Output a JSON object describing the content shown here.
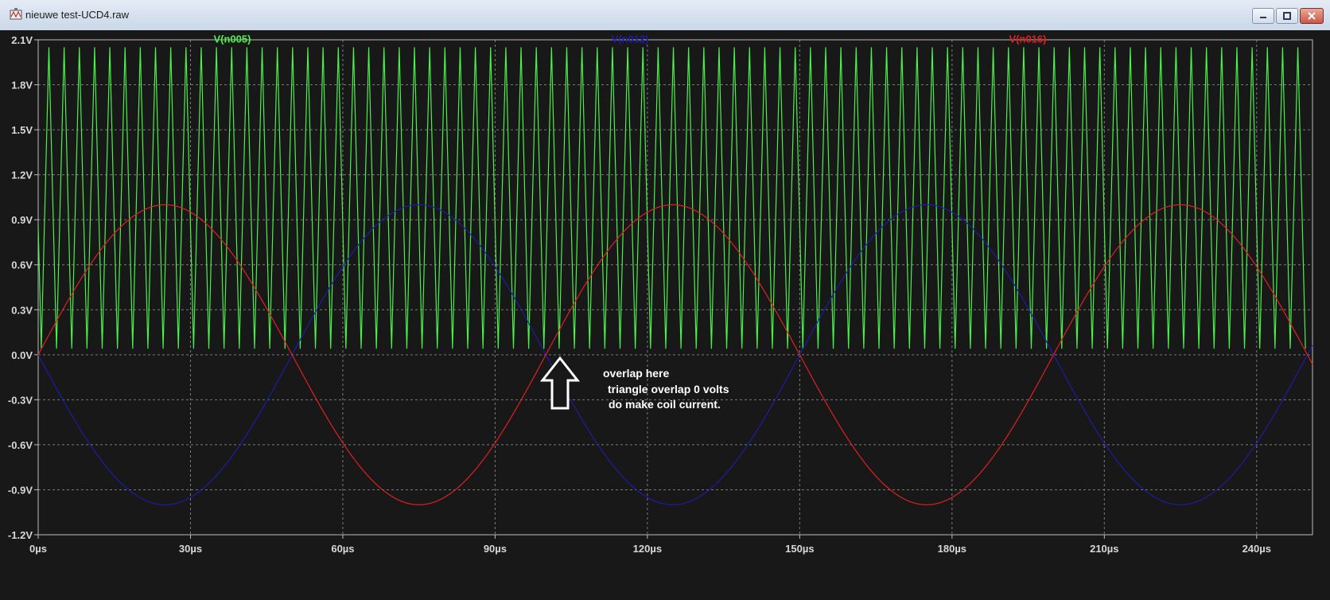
{
  "window": {
    "title": "nieuwe test-UCD4.raw",
    "app_icon": "ltspice-waveform-icon",
    "controls": {
      "minimize": "minimize-icon",
      "maximize": "maximize-icon",
      "close": "close-icon"
    }
  },
  "annotation": {
    "line1": "overlap here",
    "line2": "triangle overlap 0 volts",
    "line3": "do make coil current.",
    "arrow": "up-arrow-icon"
  },
  "colors": {
    "background": "#181818",
    "grid": "#7a7a7a",
    "n005": "#4cf04c",
    "n012": "#1c1ca8",
    "n016": "#e02020"
  },
  "chart_data": {
    "type": "line",
    "title": "",
    "xlabel": "",
    "ylabel": "",
    "xlim": [
      0,
      251
    ],
    "ylim": [
      -1.2,
      2.1
    ],
    "grid": true,
    "x_ticks": [
      {
        "value": 0,
        "label": "0µs"
      },
      {
        "value": 30,
        "label": "30µs"
      },
      {
        "value": 60,
        "label": "60µs"
      },
      {
        "value": 90,
        "label": "90µs"
      },
      {
        "value": 120,
        "label": "120µs"
      },
      {
        "value": 150,
        "label": "150µs"
      },
      {
        "value": 180,
        "label": "180µs"
      },
      {
        "value": 210,
        "label": "210µs"
      },
      {
        "value": 240,
        "label": "240µs"
      }
    ],
    "y_ticks": [
      {
        "value": 2.1,
        "label": "2.1V"
      },
      {
        "value": 1.8,
        "label": "1.8V"
      },
      {
        "value": 1.5,
        "label": "1.5V"
      },
      {
        "value": 1.2,
        "label": "1.2V"
      },
      {
        "value": 0.9,
        "label": "0.9V"
      },
      {
        "value": 0.6,
        "label": "0.6V"
      },
      {
        "value": 0.3,
        "label": "0.3V"
      },
      {
        "value": 0.0,
        "label": "0.0V"
      },
      {
        "value": -0.3,
        "label": "-0.3V"
      },
      {
        "value": -0.6,
        "label": "-0.6V"
      },
      {
        "value": -0.9,
        "label": "-0.9V"
      },
      {
        "value": -1.2,
        "label": "-1.2V"
      }
    ],
    "series": [
      {
        "name": "V(n005)",
        "shape": "triangle",
        "period_us": 3.0,
        "min": 0.04,
        "max": 2.05,
        "start_value": 0.86
      },
      {
        "name": "V(n012)",
        "shape": "sine",
        "amplitude": 1.0,
        "period_us": 100,
        "phase_sign": -1,
        "clip_min": 0.0
      },
      {
        "name": "V(n016)",
        "shape": "sine",
        "amplitude": 1.0,
        "period_us": 100,
        "phase_sign": 1
      }
    ]
  }
}
